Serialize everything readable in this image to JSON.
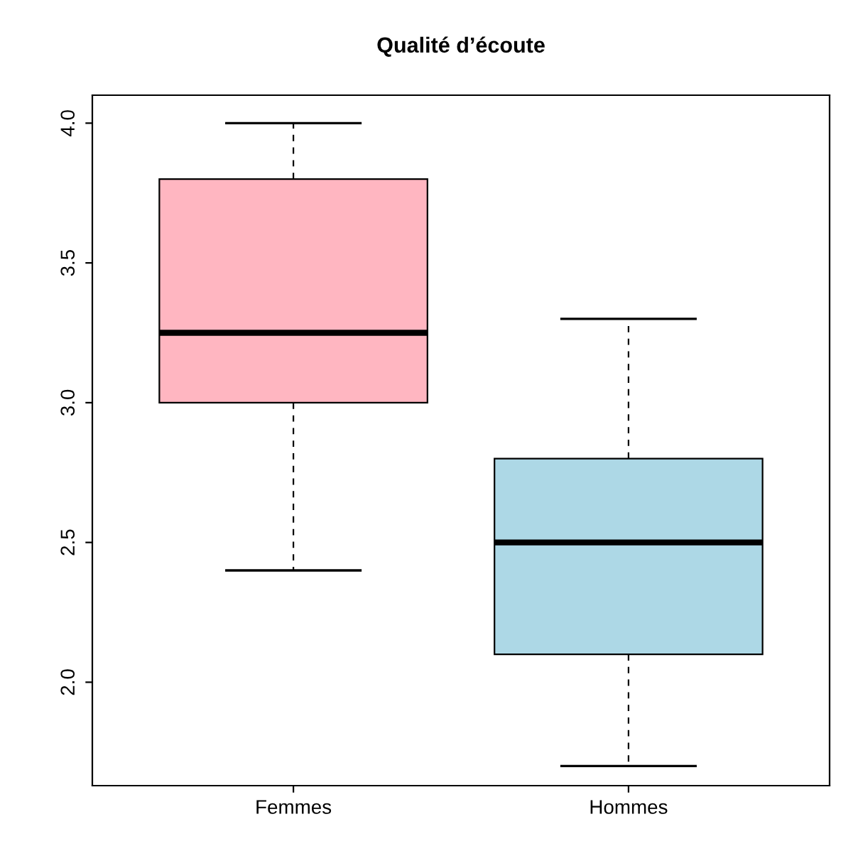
{
  "chart_data": {
    "type": "box",
    "title": "Qualité d’écoute",
    "categories": [
      "Femmes",
      "Hommes"
    ],
    "boxes": [
      {
        "low": 2.4,
        "q1": 3.0,
        "median": 3.25,
        "q3": 3.8,
        "high": 4.0
      },
      {
        "low": 1.7,
        "q1": 2.1,
        "median": 2.5,
        "q3": 2.8,
        "high": 3.3
      }
    ],
    "colors": [
      "#ffb6c1",
      "#add8e6"
    ],
    "ylim": [
      1.63,
      4.1
    ],
    "yticks": [
      {
        "value": 2,
        "label": "2.0"
      },
      2.5,
      {
        "value": 3,
        "label": "3.0"
      },
      3.5,
      {
        "value": 4,
        "label": "4.0"
      }
    ],
    "grid": false,
    "legend": false
  }
}
